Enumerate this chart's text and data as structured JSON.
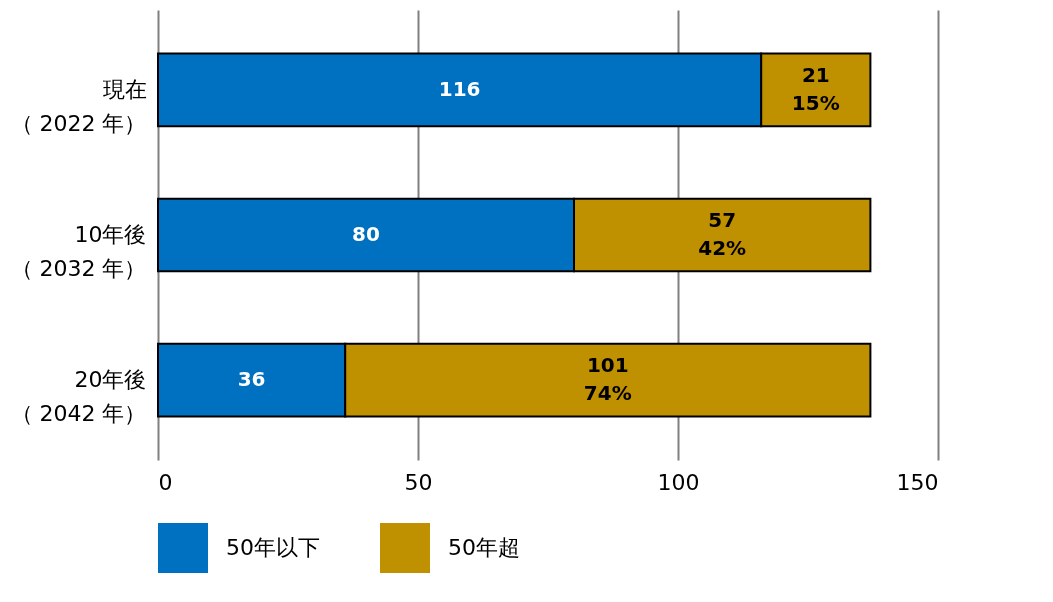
{
  "chart_data": {
    "type": "bar",
    "orientation": "horizontal",
    "stacked": true,
    "categories": [
      "現在（ 2022 年）",
      "10年後（ 2032 年）",
      "20年後（ 2042 年）"
    ],
    "series": [
      {
        "name": "50年以下",
        "color": "#0070c0",
        "values": [
          116,
          80,
          36
        ],
        "value_labels": [
          "116",
          "80",
          "36"
        ]
      },
      {
        "name": "50年超",
        "color": "#bf9000",
        "values": [
          21,
          57,
          101
        ],
        "value_labels": [
          "21\n15%",
          "57\n42%",
          "101\n74%"
        ]
      }
    ],
    "xlim": [
      0,
      150
    ],
    "xticks": [
      0,
      50,
      100,
      150
    ],
    "grid": "x",
    "legend": "bottom"
  }
}
